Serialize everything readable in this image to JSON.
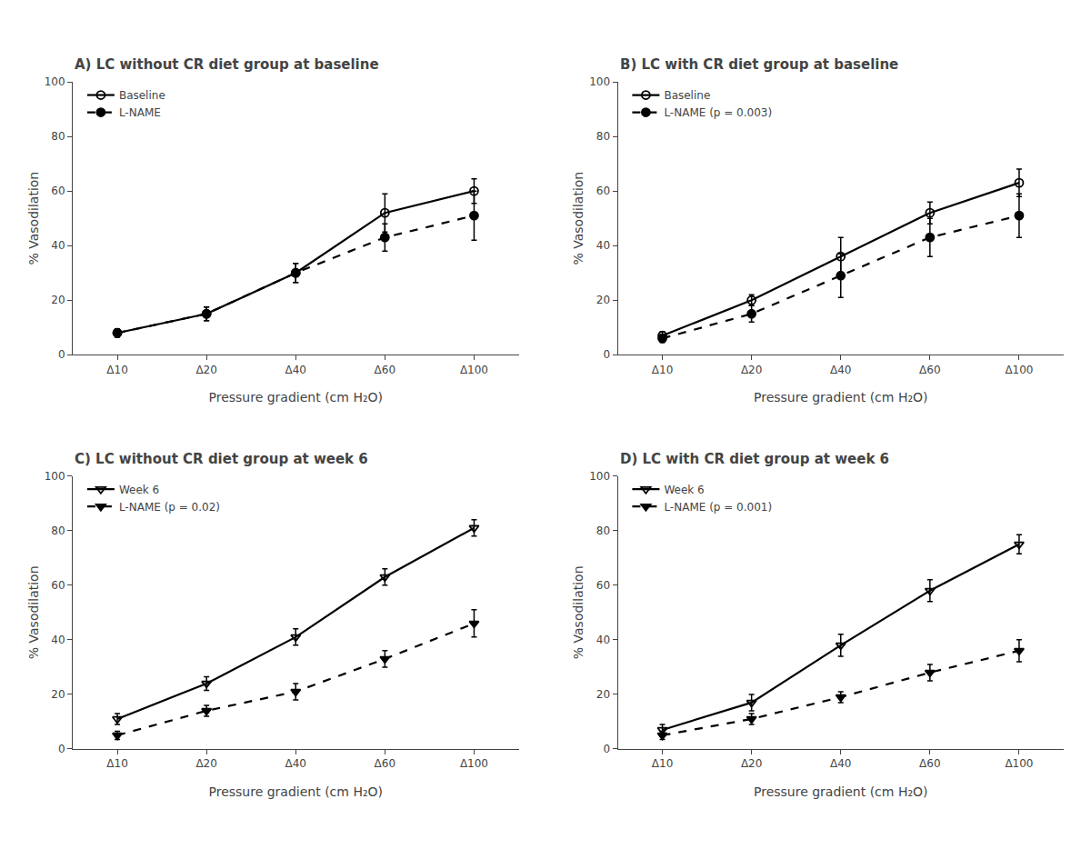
{
  "chart_data": [
    {
      "type": "line",
      "title": "A) LC without CR diet group at baseline",
      "xlabel": "Pressure gradient (cm H₂O)",
      "ylabel": "% Vasodilation",
      "categories": [
        "Δ10",
        "Δ20",
        "Δ40",
        "Δ60",
        "Δ100"
      ],
      "ylim": [
        0,
        100
      ],
      "yticks": [
        0,
        20,
        40,
        60,
        80,
        100
      ],
      "grid": false,
      "legend": "upper left",
      "color": "#000000",
      "series": [
        {
          "name": "Baseline",
          "values": [
            8,
            15,
            30,
            52,
            60
          ],
          "error": [
            1.5,
            2.5,
            3.5,
            7.0,
            4.5
          ],
          "marker": "circle-open",
          "line_style": "solid"
        },
        {
          "name": "L-NAME",
          "values": [
            8,
            15,
            30,
            43,
            51
          ],
          "error": [
            1.5,
            2.5,
            3.5,
            5.0,
            9.0
          ],
          "marker": "circle",
          "line_style": "dash"
        }
      ]
    },
    {
      "type": "line",
      "title": "B) LC with CR diet group at baseline",
      "xlabel": "Pressure gradient (cm H₂O)",
      "ylabel": "% Vasodilation",
      "categories": [
        "Δ10",
        "Δ20",
        "Δ40",
        "Δ60",
        "Δ100"
      ],
      "ylim": [
        0,
        100
      ],
      "yticks": [
        0,
        20,
        40,
        60,
        80,
        100
      ],
      "grid": false,
      "legend": "upper left",
      "color": "#000000",
      "series": [
        {
          "name": "Baseline",
          "values": [
            7,
            20,
            36,
            52,
            63
          ],
          "error": [
            1.5,
            2.0,
            7.0,
            4.0,
            5.0
          ],
          "marker": "circle-open",
          "line_style": "solid"
        },
        {
          "name": "L-NAME (p = 0.003)",
          "values": [
            6,
            15,
            29,
            43,
            51
          ],
          "error": [
            1.5,
            3.0,
            8.0,
            7.0,
            8.0
          ],
          "marker": "circle",
          "line_style": "dash"
        }
      ]
    },
    {
      "type": "line",
      "title": "C) LC without CR diet group at week 6",
      "xlabel": "Pressure gradient (cm H₂O)",
      "ylabel": "% Vasodilation",
      "categories": [
        "Δ10",
        "Δ20",
        "Δ40",
        "Δ60",
        "Δ100"
      ],
      "ylim": [
        0,
        100
      ],
      "yticks": [
        0,
        20,
        40,
        60,
        80,
        100
      ],
      "grid": false,
      "legend": "upper left",
      "color": "#000000",
      "series": [
        {
          "name": "Week 6",
          "values": [
            11,
            24,
            41,
            63,
            81
          ],
          "error": [
            2.0,
            2.5,
            3.0,
            3.0,
            3.0
          ],
          "marker": "triangle-down-open",
          "line_style": "solid"
        },
        {
          "name": "L-NAME (p = 0.02)",
          "values": [
            5,
            14,
            21,
            33,
            46
          ],
          "error": [
            1.5,
            2.0,
            3.0,
            3.0,
            5.0
          ],
          "marker": "triangle-down",
          "line_style": "dash"
        }
      ]
    },
    {
      "type": "line",
      "title": "D) LC with CR diet group at week 6",
      "xlabel": "Pressure gradient (cm H₂O)",
      "ylabel": "% Vasodilation",
      "categories": [
        "Δ10",
        "Δ20",
        "Δ40",
        "Δ60",
        "Δ100"
      ],
      "ylim": [
        0,
        100
      ],
      "yticks": [
        0,
        20,
        40,
        60,
        80,
        100
      ],
      "grid": false,
      "legend": "upper left",
      "color": "#000000",
      "series": [
        {
          "name": "Week 6",
          "values": [
            7,
            17,
            38,
            58,
            75
          ],
          "error": [
            2.0,
            3.0,
            4.0,
            4.0,
            3.5
          ],
          "marker": "triangle-down-open",
          "line_style": "solid"
        },
        {
          "name": "L-NAME (p = 0.001)",
          "values": [
            5,
            11,
            19,
            28,
            36
          ],
          "error": [
            1.5,
            2.0,
            2.0,
            3.0,
            4.0
          ],
          "marker": "triangle-down",
          "line_style": "dash"
        }
      ]
    }
  ]
}
